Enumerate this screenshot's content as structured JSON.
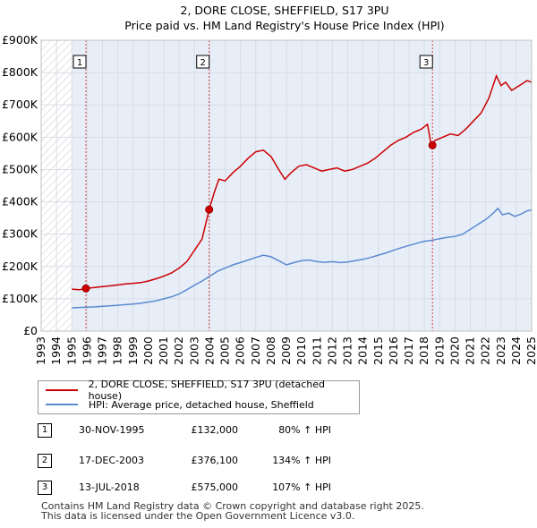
{
  "chart_data": {
    "type": "line",
    "title": "2, DORE CLOSE, SHEFFIELD, S17 3PU",
    "subtitle": "Price paid vs. HM Land Registry's House Price Index (HPI)",
    "xlim": [
      1993,
      2025
    ],
    "ylim": [
      0,
      900000
    ],
    "x_tick_labels": [
      "1993",
      "1994",
      "1995",
      "1996",
      "1997",
      "1998",
      "1999",
      "2000",
      "2001",
      "2002",
      "2003",
      "2004",
      "2005",
      "2006",
      "2007",
      "2008",
      "2009",
      "2010",
      "2011",
      "2012",
      "2013",
      "2014",
      "2015",
      "2016",
      "2017",
      "2018",
      "2019",
      "2020",
      "2021",
      "2022",
      "2023",
      "2024",
      "2025"
    ],
    "y_ticks": [
      0,
      100000,
      200000,
      300000,
      400000,
      500000,
      600000,
      700000,
      800000,
      900000
    ],
    "y_tick_labels": [
      "£0",
      "£100K",
      "£200K",
      "£300K",
      "£400K",
      "£500K",
      "£600K",
      "£700K",
      "£800K",
      "£900K"
    ],
    "hatch_before": 1995,
    "colors": {
      "property": "#cc0000",
      "hpi": "#5a8ad0",
      "grid": "#d8dde8",
      "plot_bg": "#e8eef8"
    },
    "series": [
      {
        "name": "2, DORE CLOSE, SHEFFIELD, S17 3PU (detached house)",
        "color": "#cc0000",
        "points": [
          [
            1995.0,
            130000
          ],
          [
            1995.5,
            128000
          ],
          [
            1995.92,
            132000
          ],
          [
            1996.5,
            135000
          ],
          [
            1997.0,
            138000
          ],
          [
            1997.5,
            140000
          ],
          [
            1998.0,
            143000
          ],
          [
            1998.5,
            146000
          ],
          [
            1999.0,
            148000
          ],
          [
            1999.5,
            150000
          ],
          [
            2000.0,
            155000
          ],
          [
            2000.5,
            162000
          ],
          [
            2001.0,
            170000
          ],
          [
            2001.5,
            180000
          ],
          [
            2002.0,
            195000
          ],
          [
            2002.5,
            215000
          ],
          [
            2003.0,
            250000
          ],
          [
            2003.5,
            285000
          ],
          [
            2003.96,
            376100
          ],
          [
            2004.3,
            430000
          ],
          [
            2004.6,
            470000
          ],
          [
            2005.0,
            465000
          ],
          [
            2005.5,
            490000
          ],
          [
            2006.0,
            510000
          ],
          [
            2006.5,
            535000
          ],
          [
            2007.0,
            555000
          ],
          [
            2007.5,
            560000
          ],
          [
            2008.0,
            540000
          ],
          [
            2008.5,
            500000
          ],
          [
            2008.9,
            470000
          ],
          [
            2009.3,
            490000
          ],
          [
            2009.8,
            510000
          ],
          [
            2010.3,
            515000
          ],
          [
            2010.8,
            505000
          ],
          [
            2011.3,
            495000
          ],
          [
            2011.8,
            500000
          ],
          [
            2012.3,
            505000
          ],
          [
            2012.8,
            495000
          ],
          [
            2013.3,
            500000
          ],
          [
            2013.8,
            510000
          ],
          [
            2014.3,
            520000
          ],
          [
            2014.8,
            535000
          ],
          [
            2015.3,
            555000
          ],
          [
            2015.8,
            575000
          ],
          [
            2016.3,
            590000
          ],
          [
            2016.8,
            600000
          ],
          [
            2017.3,
            615000
          ],
          [
            2017.8,
            625000
          ],
          [
            2018.2,
            640000
          ],
          [
            2018.45,
            575000
          ],
          [
            2018.7,
            590000
          ],
          [
            2019.2,
            600000
          ],
          [
            2019.7,
            610000
          ],
          [
            2020.2,
            605000
          ],
          [
            2020.7,
            625000
          ],
          [
            2021.2,
            650000
          ],
          [
            2021.7,
            675000
          ],
          [
            2022.2,
            720000
          ],
          [
            2022.7,
            790000
          ],
          [
            2023.0,
            760000
          ],
          [
            2023.3,
            770000
          ],
          [
            2023.7,
            745000
          ],
          [
            2024.2,
            760000
          ],
          [
            2024.7,
            775000
          ],
          [
            2025.0,
            770000
          ]
        ]
      },
      {
        "name": "HPI: Average price, detached house, Sheffield",
        "color": "#5a8ad0",
        "points": [
          [
            1995.0,
            72000
          ],
          [
            1995.5,
            73000
          ],
          [
            1996.0,
            74000
          ],
          [
            1996.5,
            75000
          ],
          [
            1997.0,
            77000
          ],
          [
            1997.5,
            78000
          ],
          [
            1998.0,
            80000
          ],
          [
            1998.5,
            82000
          ],
          [
            1999.0,
            84000
          ],
          [
            1999.5,
            86000
          ],
          [
            2000.0,
            90000
          ],
          [
            2000.5,
            94000
          ],
          [
            2001.0,
            100000
          ],
          [
            2001.5,
            106000
          ],
          [
            2002.0,
            115000
          ],
          [
            2002.5,
            128000
          ],
          [
            2003.0,
            142000
          ],
          [
            2003.5,
            155000
          ],
          [
            2004.0,
            170000
          ],
          [
            2004.5,
            185000
          ],
          [
            2005.0,
            195000
          ],
          [
            2005.5,
            205000
          ],
          [
            2006.0,
            212000
          ],
          [
            2006.5,
            220000
          ],
          [
            2007.0,
            228000
          ],
          [
            2007.5,
            235000
          ],
          [
            2008.0,
            230000
          ],
          [
            2008.5,
            218000
          ],
          [
            2009.0,
            205000
          ],
          [
            2009.5,
            212000
          ],
          [
            2010.0,
            218000
          ],
          [
            2010.5,
            220000
          ],
          [
            2011.0,
            215000
          ],
          [
            2011.5,
            213000
          ],
          [
            2012.0,
            215000
          ],
          [
            2012.5,
            212000
          ],
          [
            2013.0,
            214000
          ],
          [
            2013.5,
            218000
          ],
          [
            2014.0,
            222000
          ],
          [
            2014.5,
            228000
          ],
          [
            2015.0,
            235000
          ],
          [
            2015.5,
            242000
          ],
          [
            2016.0,
            250000
          ],
          [
            2016.5,
            258000
          ],
          [
            2017.0,
            265000
          ],
          [
            2017.5,
            272000
          ],
          [
            2018.0,
            278000
          ],
          [
            2018.5,
            281000
          ],
          [
            2019.0,
            286000
          ],
          [
            2019.5,
            290000
          ],
          [
            2020.0,
            293000
          ],
          [
            2020.5,
            300000
          ],
          [
            2021.0,
            315000
          ],
          [
            2021.5,
            330000
          ],
          [
            2022.0,
            345000
          ],
          [
            2022.5,
            365000
          ],
          [
            2022.8,
            380000
          ],
          [
            2023.1,
            360000
          ],
          [
            2023.5,
            365000
          ],
          [
            2023.9,
            355000
          ],
          [
            2024.3,
            362000
          ],
          [
            2024.7,
            372000
          ],
          [
            2025.0,
            375000
          ]
        ]
      }
    ],
    "sales": [
      {
        "label": "1",
        "year": 1995.92,
        "price": 132000
      },
      {
        "label": "2",
        "year": 2003.96,
        "price": 376100
      },
      {
        "label": "3",
        "year": 2018.53,
        "price": 575000
      }
    ]
  },
  "legend": {
    "property_label": "2, DORE CLOSE, SHEFFIELD, S17 3PU (detached house)",
    "hpi_label": "HPI: Average price, detached house, Sheffield"
  },
  "sales_table": [
    {
      "num": "1",
      "date": "30-NOV-1995",
      "price": "£132,000",
      "hpi": "80% ↑ HPI"
    },
    {
      "num": "2",
      "date": "17-DEC-2003",
      "price": "£376,100",
      "hpi": "134% ↑ HPI"
    },
    {
      "num": "3",
      "date": "13-JUL-2018",
      "price": "£575,000",
      "hpi": "107% ↑ HPI"
    }
  ],
  "footer": {
    "line1": "Contains HM Land Registry data © Crown copyright and database right 2025.",
    "line2": "This data is licensed under the Open Government Licence v3.0."
  }
}
